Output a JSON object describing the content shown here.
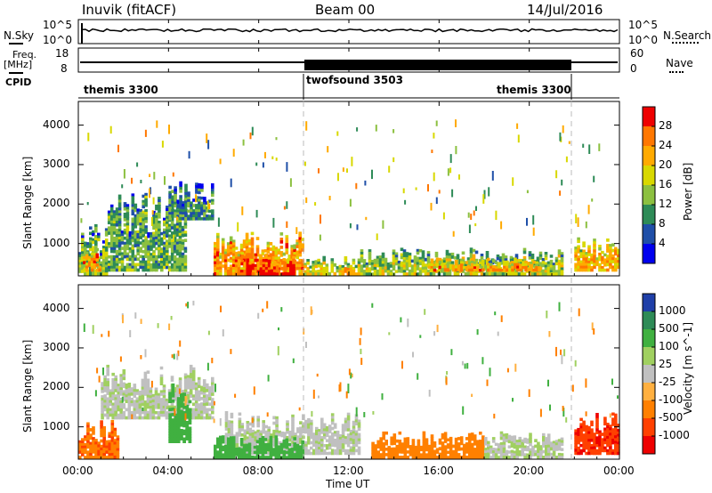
{
  "header": {
    "station": "Inuvik (fitACF)",
    "beam": "Beam 00",
    "date": "14/Jul/2016"
  },
  "side_labels": {
    "nsky": "N.Sky",
    "freq_line1": "Freq.",
    "freq_line2": "[MHz]",
    "cpid": "CPID",
    "nsearch": "N.Search",
    "nave": "Nave"
  },
  "top_ticks": {
    "nsky_left": [
      "10^5",
      "10^0"
    ],
    "nsky_right": [
      "10^5",
      "10^0"
    ],
    "freq_left": [
      "18",
      "8"
    ],
    "nave_right": [
      "60",
      "0"
    ]
  },
  "cpid_segments": [
    {
      "label": "themis 3300",
      "start_hr": 0,
      "end_hr": 10
    },
    {
      "label": "twofsound 3503",
      "start_hr": 10,
      "end_hr": 22
    },
    {
      "label": "themis 3300",
      "start_hr": 22,
      "end_hr": 24
    }
  ],
  "panels": {
    "power": {
      "ylabel": "Slant Range [km]",
      "cbar_label": "Power [dB]",
      "cbar_ticks": [
        "28",
        "24",
        "20",
        "16",
        "12",
        "8",
        "4"
      ],
      "colors": [
        "#ee0000",
        "#ff7700",
        "#ffaa00",
        "#d8d800",
        "#8cc040",
        "#2e8b57",
        "#1f4fa8",
        "#0000ee"
      ]
    },
    "velocity": {
      "ylabel": "Slant Range [km]",
      "cbar_label": "Velocity [m s^-1]",
      "cbar_ticks": [
        "1000",
        "500",
        "100",
        "25",
        "-25",
        "-100",
        "-500",
        "-1000"
      ],
      "colors": [
        "#1f3fa8",
        "#2e8b57",
        "#40b040",
        "#a0d060",
        "#c0c0c0",
        "#ffb040",
        "#ff8000",
        "#ff4000",
        "#ee0000"
      ]
    }
  },
  "range_ticks": [
    "4000",
    "3000",
    "2000",
    "1000"
  ],
  "x_ticks": [
    "00:00",
    "04:00",
    "08:00",
    "12:00",
    "16:00",
    "20:00",
    "00:00"
  ],
  "xlabel": "Time UT",
  "chart_data": [
    {
      "type": "heatmap",
      "title": "Beam 00",
      "xlabel": "Time UT",
      "ylabel": "Slant Range [km]",
      "x_range_hours": [
        0,
        24
      ],
      "ylim": [
        180,
        4600
      ],
      "colorbar": "Power [dB]",
      "color_ticks": [
        4,
        8,
        12,
        16,
        20,
        24,
        28
      ],
      "regions": [
        {
          "t0": 0.0,
          "t1": 1.3,
          "r0": 200,
          "r1": 1500,
          "power_db": 12
        },
        {
          "t0": 0.2,
          "t1": 1.0,
          "r0": 300,
          "r1": 900,
          "power_db": 22
        },
        {
          "t0": 1.3,
          "t1": 4.8,
          "r0": 300,
          "r1": 2400,
          "power_db": 10
        },
        {
          "t0": 4.0,
          "t1": 6.0,
          "r0": 1600,
          "r1": 2600,
          "power_db": 8
        },
        {
          "t0": 6.0,
          "t1": 10.0,
          "r0": 200,
          "r1": 1300,
          "power_db": 22
        },
        {
          "t0": 7.2,
          "t1": 9.6,
          "r0": 200,
          "r1": 800,
          "power_db": 28
        },
        {
          "t0": 10.0,
          "t1": 12.5,
          "r0": 200,
          "r1": 700,
          "power_db": 18
        },
        {
          "t0": 12.5,
          "t1": 21.5,
          "r0": 200,
          "r1": 900,
          "power_db": 14
        },
        {
          "t0": 15.5,
          "t1": 20.5,
          "r0": 300,
          "r1": 650,
          "power_db": 22
        },
        {
          "t0": 22.0,
          "t1": 24.0,
          "r0": 300,
          "r1": 1200,
          "power_db": 20
        }
      ]
    },
    {
      "type": "heatmap",
      "xlabel": "Time UT",
      "ylabel": "Slant Range [km]",
      "x_range_hours": [
        0,
        24
      ],
      "ylim": [
        180,
        4600
      ],
      "colorbar": "Velocity [m s^-1]",
      "color_ticks": [
        -1000,
        -500,
        -100,
        -25,
        25,
        100,
        500,
        1000
      ],
      "regions": [
        {
          "t0": 0.0,
          "t1": 1.8,
          "r0": 200,
          "r1": 1200,
          "velocity": -250
        },
        {
          "t0": 1.0,
          "t1": 6.0,
          "r0": 1200,
          "r1": 2600,
          "velocity": 15
        },
        {
          "t0": 4.0,
          "t1": 5.0,
          "r0": 600,
          "r1": 2200,
          "velocity": 200
        },
        {
          "t0": 6.5,
          "t1": 12.5,
          "r0": 300,
          "r1": 1400,
          "velocity": 10
        },
        {
          "t0": 6.0,
          "t1": 10.0,
          "r0": 200,
          "r1": 800,
          "velocity": 150
        },
        {
          "t0": 13.0,
          "t1": 18.0,
          "r0": 200,
          "r1": 900,
          "velocity": -150
        },
        {
          "t0": 18.0,
          "t1": 21.5,
          "r0": 200,
          "r1": 900,
          "velocity": 20
        },
        {
          "t0": 22.0,
          "t1": 24.0,
          "r0": 300,
          "r1": 1500,
          "velocity": -600
        }
      ]
    }
  ]
}
